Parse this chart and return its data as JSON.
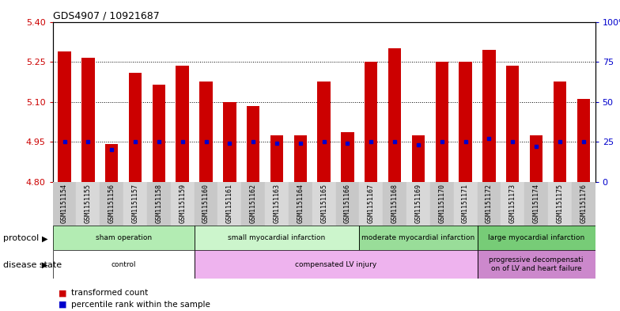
{
  "title": "GDS4907 / 10921687",
  "samples": [
    "GSM1151154",
    "GSM1151155",
    "GSM1151156",
    "GSM1151157",
    "GSM1151158",
    "GSM1151159",
    "GSM1151160",
    "GSM1151161",
    "GSM1151162",
    "GSM1151163",
    "GSM1151164",
    "GSM1151165",
    "GSM1151166",
    "GSM1151167",
    "GSM1151168",
    "GSM1151169",
    "GSM1151170",
    "GSM1151171",
    "GSM1151172",
    "GSM1151173",
    "GSM1151174",
    "GSM1151175",
    "GSM1151176"
  ],
  "bar_values": [
    5.29,
    5.265,
    4.942,
    5.21,
    5.165,
    5.235,
    5.175,
    5.1,
    5.085,
    4.975,
    4.975,
    5.175,
    4.985,
    5.25,
    5.3,
    4.975,
    5.25,
    5.25,
    5.295,
    5.235,
    4.975,
    5.175,
    5.11
  ],
  "percentile_values": [
    25,
    25,
    20,
    25,
    25,
    25,
    25,
    24,
    25,
    24,
    24,
    25,
    24,
    25,
    25,
    23,
    25,
    25,
    27,
    25,
    22,
    25,
    25
  ],
  "bar_bottom": 4.8,
  "ylim_left": [
    4.8,
    5.4
  ],
  "ylim_right": [
    0,
    100
  ],
  "yticks_left": [
    4.8,
    4.95,
    5.1,
    5.25,
    5.4
  ],
  "yticks_right": [
    0,
    25,
    50,
    75,
    100
  ],
  "ytick_labels_right": [
    "0",
    "25",
    "50",
    "75",
    "100%"
  ],
  "bar_color": "#cc0000",
  "dot_color": "#0000cc",
  "protocol_bands": [
    {
      "label": "sham operation",
      "start": 0,
      "end": 6,
      "color": "#b3ecb3"
    },
    {
      "label": "small myocardial infarction",
      "start": 6,
      "end": 13,
      "color": "#ccf5cc"
    },
    {
      "label": "moderate myocardial infarction",
      "start": 13,
      "end": 18,
      "color": "#99dd99"
    },
    {
      "label": "large myocardial infarction",
      "start": 18,
      "end": 23,
      "color": "#77cc77"
    }
  ],
  "disease_bands": [
    {
      "label": "control",
      "start": 0,
      "end": 6,
      "color": "#ffffff"
    },
    {
      "label": "compensated LV injury",
      "start": 6,
      "end": 18,
      "color": "#eeb3ee"
    },
    {
      "label": "progressive decompensati\non of LV and heart failure",
      "start": 18,
      "end": 23,
      "color": "#cc88cc"
    }
  ],
  "bg_color": "#ffffff",
  "bar_color_red": "#cc0000",
  "dot_color_blue": "#0000cc"
}
